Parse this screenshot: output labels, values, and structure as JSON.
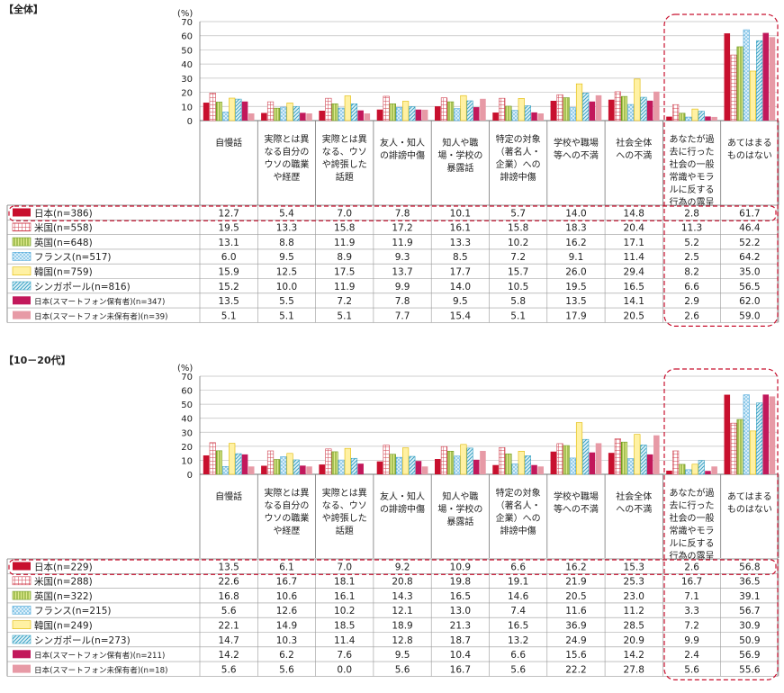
{
  "chart_data": [
    {
      "type": "bar",
      "title": "【全体】",
      "y_unit": "(%)",
      "ylim": [
        0,
        70
      ],
      "yticks": [
        0,
        10,
        20,
        30,
        40,
        50,
        60,
        70
      ],
      "grid": true,
      "categories": [
        "自慢話",
        "実際とは異なる自分のウソの職業や経歴",
        "実際とは異なる、ウソや誇張した話題",
        "友人・知人の誹謗中傷",
        "知人や職場・学校の暴露話",
        "特定の対象（著名人・企業）への誹謗中傷",
        "学校や職場等への不満",
        "社会全体への不満",
        "あなたが過去に行った社会の一般常識やモラルに反する行為の露呈",
        "あてはまるものはない"
      ],
      "series": [
        {
          "name": "日本(n=386)",
          "values": [
            12.7,
            5.4,
            7.0,
            7.8,
            10.1,
            5.7,
            14.0,
            14.8,
            2.8,
            61.7
          ]
        },
        {
          "name": "米国(n=558)",
          "values": [
            19.5,
            13.3,
            15.8,
            17.2,
            16.1,
            15.8,
            18.3,
            20.4,
            11.3,
            46.4
          ]
        },
        {
          "name": "英国(n=648)",
          "values": [
            13.1,
            8.8,
            11.9,
            11.9,
            13.3,
            10.2,
            16.2,
            17.1,
            5.2,
            52.2
          ]
        },
        {
          "name": "フランス(n=517)",
          "values": [
            6.0,
            9.5,
            8.9,
            9.3,
            8.5,
            7.2,
            9.1,
            11.4,
            2.5,
            64.2
          ]
        },
        {
          "name": "韓国(n=759)",
          "values": [
            15.9,
            12.5,
            17.5,
            13.7,
            17.7,
            15.7,
            26.0,
            29.4,
            8.2,
            35.0
          ]
        },
        {
          "name": "シンガポール(n=816)",
          "values": [
            15.2,
            10.0,
            11.9,
            9.9,
            14.0,
            10.5,
            19.5,
            16.5,
            6.6,
            56.5
          ]
        },
        {
          "name": "日本(スマートフォン保有者)(n=347)",
          "values": [
            13.5,
            5.5,
            7.2,
            7.8,
            9.5,
            5.8,
            13.5,
            14.1,
            2.9,
            62.0
          ]
        },
        {
          "name": "日本(スマートフォン未保有者)(n=39)",
          "values": [
            5.1,
            5.1,
            5.1,
            7.7,
            15.4,
            5.1,
            17.9,
            20.5,
            2.6,
            59.0
          ]
        }
      ]
    },
    {
      "type": "bar",
      "title": "【10－20代】",
      "y_unit": "(%)",
      "ylim": [
        0,
        70
      ],
      "yticks": [
        0,
        10,
        20,
        30,
        40,
        50,
        60,
        70
      ],
      "grid": true,
      "categories": [
        "自慢話",
        "実際とは異なる自分のウソの職業や経歴",
        "実際とは異なる、ウソや誇張した話題",
        "友人・知人の誹謗中傷",
        "知人や職場・学校の暴露話",
        "特定の対象（著名人・企業）への誹謗中傷",
        "学校や職場等への不満",
        "社会全体への不満",
        "あなたが過去に行った社会の一般常識やモラルに反する行為の露呈",
        "あてはまるものはない"
      ],
      "series": [
        {
          "name": "日本(n=229)",
          "values": [
            13.5,
            6.1,
            7.0,
            9.2,
            10.9,
            6.6,
            16.2,
            15.3,
            2.6,
            56.8
          ]
        },
        {
          "name": "米国(n=288)",
          "values": [
            22.6,
            16.7,
            18.1,
            20.8,
            19.8,
            19.1,
            21.9,
            25.3,
            16.7,
            36.5
          ]
        },
        {
          "name": "英国(n=322)",
          "values": [
            16.8,
            10.6,
            16.1,
            14.3,
            16.5,
            14.6,
            20.5,
            23.0,
            7.1,
            39.1
          ]
        },
        {
          "name": "フランス(n=215)",
          "values": [
            5.6,
            12.6,
            10.2,
            12.1,
            13.0,
            7.4,
            11.6,
            11.2,
            3.3,
            56.7
          ]
        },
        {
          "name": "韓国(n=249)",
          "values": [
            22.1,
            14.9,
            18.5,
            18.9,
            21.3,
            16.5,
            36.9,
            28.5,
            7.2,
            30.9
          ]
        },
        {
          "name": "シンガポール(n=273)",
          "values": [
            14.7,
            10.3,
            11.4,
            12.8,
            18.7,
            13.2,
            24.9,
            20.9,
            9.9,
            50.9
          ]
        },
        {
          "name": "日本(スマートフォン保有者)(n=211)",
          "values": [
            14.2,
            6.2,
            7.6,
            9.5,
            10.4,
            6.6,
            15.6,
            14.2,
            2.4,
            56.9
          ]
        },
        {
          "name": "日本(スマートフォン未保有者)(n=18)",
          "values": [
            5.6,
            5.6,
            0.0,
            5.6,
            16.7,
            5.6,
            22.2,
            27.8,
            5.6,
            55.6
          ]
        }
      ]
    }
  ],
  "category_label_lines": [
    [
      "自慢話"
    ],
    [
      "実際とは異",
      "なる自分の",
      "ウソの職業",
      "や経歴"
    ],
    [
      "実際とは異",
      "なる、ウソ",
      "や誇張した",
      "話題"
    ],
    [
      "友人・知人",
      "の誹謗中傷"
    ],
    [
      "知人や職",
      "場・学校の",
      "暴露話"
    ],
    [
      "特定の対象",
      "（著名人・",
      "企業）への",
      "誹謗中傷"
    ],
    [
      "学校や職場",
      "等への不満"
    ],
    [
      "社会全体",
      "への不満"
    ],
    [
      "あなたが過",
      "去に行った",
      "社会の一般",
      "常識やモラ",
      "ルに反する",
      "行為の露呈"
    ],
    [
      "あてはまる",
      "ものはない"
    ]
  ],
  "series_styles": [
    {
      "fill": "#c8102e",
      "pattern": "solid"
    },
    {
      "fill": "#ffffff",
      "pattern": "grid-red",
      "stroke": "#d0414f"
    },
    {
      "fill": "#d6e685",
      "pattern": "vlines-green",
      "stroke": "#6f9a1e"
    },
    {
      "fill": "#cfe9f7",
      "pattern": "dots-blue",
      "stroke": "#4aa6d8"
    },
    {
      "fill": "#fff1a3",
      "pattern": "solid-yellow",
      "stroke": "#e0b800"
    },
    {
      "fill": "#d6eef6",
      "pattern": "diag-teal",
      "stroke": "#3aa3c4"
    },
    {
      "fill": "#c2185b",
      "pattern": "solid-magenta"
    },
    {
      "fill": "#e79aa6",
      "pattern": "solid-pink"
    }
  ],
  "highlight_color": "#c8102e"
}
